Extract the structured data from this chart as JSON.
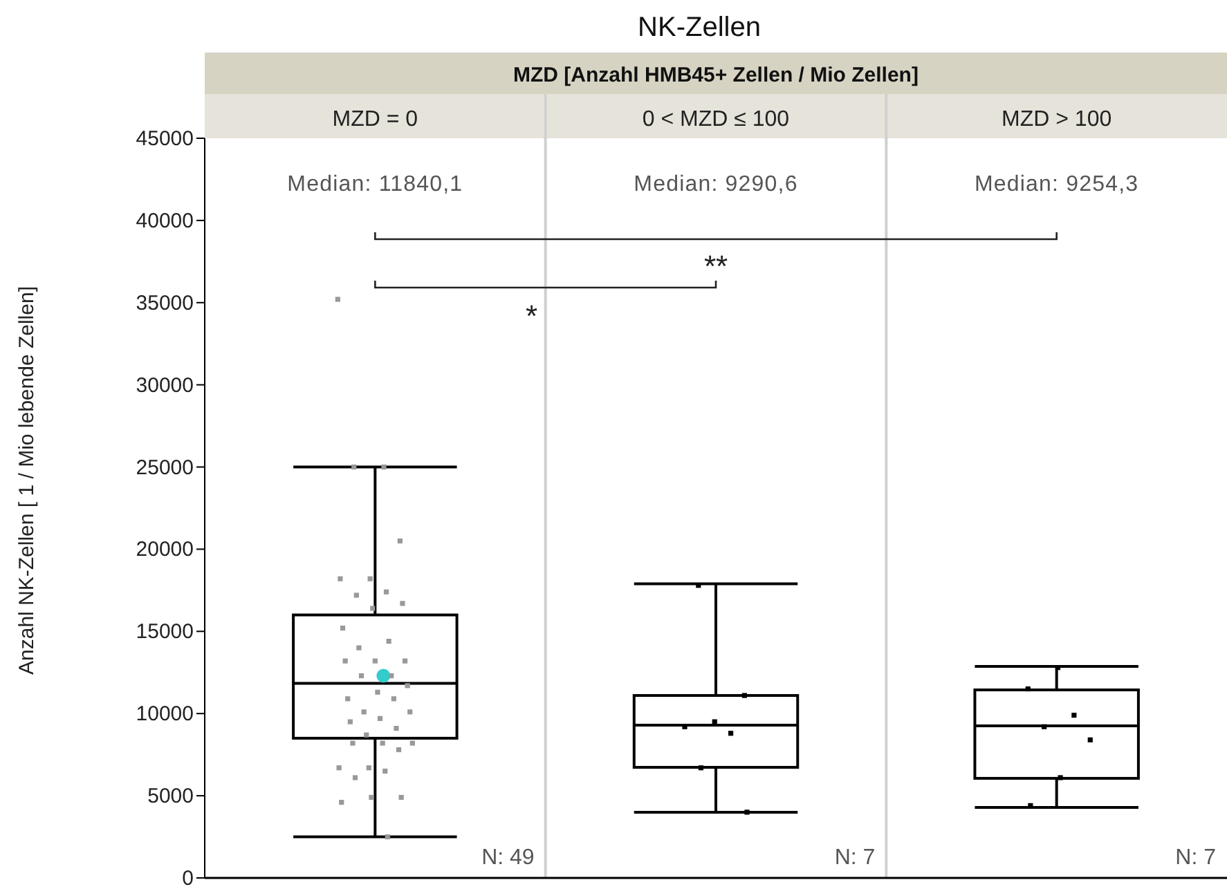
{
  "chart_data": {
    "type": "box",
    "title": "NK-Zellen",
    "xlabel": "MZD [Anzahl HMB45+ Zellen / Mio Zellen]",
    "ylabel": "Anzahl NK-Zellen [ 1 / Mio lebende Zellen]",
    "categories": [
      "MZD = 0",
      "0 < MZD ≤ 100",
      "MZD > 100"
    ],
    "ylim": [
      0,
      45000
    ],
    "yticks": [
      0,
      5000,
      10000,
      15000,
      20000,
      25000,
      30000,
      35000,
      40000,
      45000
    ],
    "grid": false,
    "boxes": [
      {
        "low": 2500,
        "q1": 8500,
        "median": 11840,
        "q3": 16000,
        "high": 25000,
        "mean": 12300
      },
      {
        "low": 4000,
        "q1": 6730,
        "median": 9290,
        "q3": 11100,
        "high": 17900
      },
      {
        "low": 4290,
        "q1": 6060,
        "median": 9254,
        "q3": 11440,
        "high": 12870
      }
    ],
    "series": [
      {
        "type": "scatter",
        "marker": "square",
        "x": [
          "MZD = 0",
          "MZD = 0",
          "MZD = 0",
          "MZD = 0",
          "MZD = 0",
          "MZD = 0",
          "MZD = 0",
          "MZD = 0",
          "MZD = 0",
          "MZD = 0",
          "MZD = 0",
          "MZD = 0",
          "MZD = 0",
          "MZD = 0",
          "MZD = 0",
          "MZD = 0",
          "MZD = 0",
          "MZD = 0",
          "MZD = 0",
          "MZD = 0",
          "MZD = 0",
          "MZD = 0",
          "MZD = 0",
          "MZD = 0",
          "MZD = 0",
          "MZD = 0",
          "MZD = 0",
          "MZD = 0",
          "MZD = 0",
          "MZD = 0",
          "MZD = 0",
          "MZD = 0",
          "MZD = 0",
          "MZD = 0",
          "MZD = 0",
          "MZD = 0",
          "MZD = 0",
          "MZD = 0",
          "MZD = 0",
          "MZD = 0",
          "0 < MZD ≤ 100",
          "0 < MZD ≤ 100",
          "0 < MZD ≤ 100",
          "0 < MZD ≤ 100",
          "0 < MZD ≤ 100",
          "0 < MZD ≤ 100",
          "0 < MZD ≤ 100",
          "MZD > 100",
          "MZD > 100",
          "MZD > 100",
          "MZD > 100",
          "MZD > 100",
          "MZD > 100",
          "MZD > 100"
        ],
        "values": [
          35200,
          25000,
          25000,
          20500,
          18200,
          18200,
          17400,
          17200,
          16700,
          16400,
          15200,
          14400,
          14000,
          13200,
          13200,
          13200,
          12300,
          12300,
          11700,
          11300,
          10900,
          10900,
          10100,
          10100,
          9700,
          9500,
          9100,
          8700,
          8200,
          8200,
          8200,
          7800,
          6700,
          6700,
          6500,
          6100,
          4900,
          4900,
          4600,
          2500,
          17800,
          11100,
          9500,
          9200,
          8800,
          6700,
          4000,
          12800,
          11500,
          9900,
          9200,
          8400,
          6100,
          4400
        ],
        "colors": [
          "#999999",
          "#999999",
          "#999999",
          "#999999",
          "#999999",
          "#999999",
          "#999999",
          "#999999",
          "#999999",
          "#999999",
          "#999999",
          "#999999",
          "#999999",
          "#999999",
          "#999999",
          "#999999",
          "#999999",
          "#999999",
          "#999999",
          "#999999",
          "#999999",
          "#999999",
          "#999999",
          "#999999",
          "#999999",
          "#999999",
          "#999999",
          "#999999",
          "#999999",
          "#999999",
          "#999999",
          "#999999",
          "#999999",
          "#999999",
          "#999999",
          "#999999",
          "#999999",
          "#999999",
          "#999999",
          "#999999",
          "#000000",
          "#000000",
          "#000000",
          "#000000",
          "#000000",
          "#000000",
          "#000000",
          "#000000",
          "#000000",
          "#000000",
          "#000000",
          "#000000",
          "#000000",
          "#000000"
        ]
      }
    ],
    "annotations": [
      "Median: 11840,1",
      "Median: 9290,6",
      "Median: 9254,3",
      "N: 49",
      "N: 7",
      "N: 7",
      "*",
      "**"
    ]
  }
}
